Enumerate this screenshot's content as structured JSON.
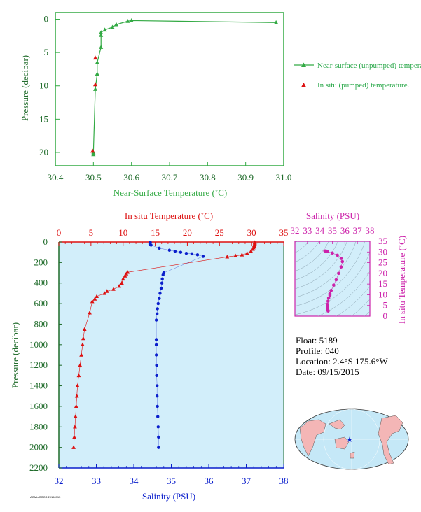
{
  "colors": {
    "green": "#33aa44",
    "axis_green": "#1f6b2a",
    "red": "#dd1111",
    "blue": "#0a1ecc",
    "magenta": "#cc22aa",
    "panel_fill": "#d2eefa",
    "land": "#f4b6b6",
    "ocean": "#c5e8f7"
  },
  "info": {
    "float": "Float:  5189",
    "profile": "Profile:  040",
    "location": "Location:  2.4°S  175.6°W",
    "date": "Date:  09/15/2015"
  },
  "footer_id": "AOML/GOOS 20150915",
  "chart_data": [
    {
      "type": "line",
      "panel": "near-surface",
      "xlabel": "Near-Surface Temperature (˚C)",
      "ylabel": "Pressure (decibar)",
      "xlim": [
        30.4,
        31.0
      ],
      "ylim": [
        22,
        -1
      ],
      "x_ticks": [
        "30.4",
        "30.5",
        "30.6",
        "30.7",
        "30.8",
        "30.9",
        "31.0"
      ],
      "y_ticks": [
        "0",
        "5",
        "10",
        "15",
        "20"
      ],
      "grid": false,
      "legend_position": "right",
      "series": [
        {
          "name": "Near-surface (unpumped) temperature.",
          "marker": "triangle-line",
          "points": [
            [
              30.98,
              0.5
            ],
            [
              30.6,
              0.2
            ],
            [
              30.59,
              0.3
            ],
            [
              30.56,
              0.8
            ],
            [
              30.55,
              1.2
            ],
            [
              30.53,
              1.6
            ],
            [
              30.52,
              2.0
            ],
            [
              30.52,
              2.4
            ],
            [
              30.52,
              4.2
            ],
            [
              30.51,
              6.5
            ],
            [
              30.51,
              8.2
            ],
            [
              30.505,
              10.5
            ],
            [
              30.5,
              20.0
            ],
            [
              30.5,
              20.3
            ]
          ]
        },
        {
          "name": "In situ (pumped) temperature.",
          "marker": "triangle",
          "points": [
            [
              30.505,
              5.8
            ],
            [
              30.505,
              9.8
            ],
            [
              30.498,
              19.8
            ]
          ]
        }
      ]
    },
    {
      "type": "line",
      "panel": "profile",
      "ylabel": "Pressure (decibar)",
      "ylim": [
        2200,
        0
      ],
      "y_ticks": [
        "0",
        "200",
        "400",
        "600",
        "800",
        "1000",
        "1200",
        "1400",
        "1600",
        "1800",
        "2000",
        "2200"
      ],
      "x_top": {
        "label": "In situ Temperature (˚C)",
        "lim": [
          0,
          35
        ],
        "ticks": [
          "0",
          "5",
          "10",
          "15",
          "20",
          "25",
          "30",
          "35"
        ]
      },
      "x_bottom": {
        "label": "Salinity (PSU)",
        "lim": [
          32,
          38
        ],
        "ticks": [
          "32",
          "33",
          "34",
          "35",
          "36",
          "37",
          "38"
        ]
      },
      "series": [
        {
          "variable": "temperature",
          "points": [
            [
              30.5,
              5
            ],
            [
              30.5,
              10
            ],
            [
              30.5,
              20
            ],
            [
              30.4,
              30
            ],
            [
              30.4,
              40
            ],
            [
              30.3,
              55
            ],
            [
              30.2,
              70
            ],
            [
              29.9,
              90
            ],
            [
              29.3,
              110
            ],
            [
              28.5,
              125
            ],
            [
              27.5,
              135
            ],
            [
              26.2,
              145
            ],
            [
              10.7,
              295
            ],
            [
              10.5,
              310
            ],
            [
              10.3,
              330
            ],
            [
              10.0,
              360
            ],
            [
              9.8,
              400
            ],
            [
              9.4,
              430
            ],
            [
              8.5,
              460
            ],
            [
              7.5,
              480
            ],
            [
              7.1,
              500
            ],
            [
              5.9,
              530
            ],
            [
              5.6,
              555
            ],
            [
              5.2,
              580
            ],
            [
              4.8,
              690
            ],
            [
              4.0,
              850
            ],
            [
              3.8,
              940
            ],
            [
              3.7,
              1000
            ],
            [
              3.5,
              1100
            ],
            [
              3.3,
              1200
            ],
            [
              3.1,
              1300
            ],
            [
              2.9,
              1400
            ],
            [
              2.8,
              1500
            ],
            [
              2.7,
              1600
            ],
            [
              2.6,
              1700
            ],
            [
              2.5,
              1800
            ],
            [
              2.4,
              1900
            ],
            [
              2.3,
              2000
            ]
          ]
        },
        {
          "variable": "salinity",
          "points": [
            [
              34.44,
              5
            ],
            [
              34.43,
              20
            ],
            [
              34.46,
              30
            ],
            [
              34.68,
              60
            ],
            [
              34.95,
              80
            ],
            [
              35.1,
              90
            ],
            [
              35.25,
              100
            ],
            [
              35.4,
              110
            ],
            [
              35.55,
              115
            ],
            [
              35.7,
              125
            ],
            [
              35.85,
              140
            ],
            [
              34.8,
              300
            ],
            [
              34.78,
              320
            ],
            [
              34.76,
              360
            ],
            [
              34.75,
              400
            ],
            [
              34.73,
              450
            ],
            [
              34.7,
              500
            ],
            [
              34.68,
              550
            ],
            [
              34.65,
              600
            ],
            [
              34.63,
              650
            ],
            [
              34.62,
              700
            ],
            [
              34.6,
              760
            ],
            [
              34.6,
              950
            ],
            [
              34.6,
              1000
            ],
            [
              34.6,
              1100
            ],
            [
              34.61,
              1200
            ],
            [
              34.61,
              1300
            ],
            [
              34.62,
              1400
            ],
            [
              34.62,
              1500
            ],
            [
              34.63,
              1600
            ],
            [
              34.64,
              1700
            ],
            [
              34.65,
              1800
            ],
            [
              34.66,
              1900
            ],
            [
              34.66,
              2000
            ]
          ]
        }
      ]
    },
    {
      "type": "scatter",
      "panel": "t-s",
      "xlabel": "Salinity (PSU)",
      "ylabel": "In situ Temperature (˚C)",
      "xlim": [
        32,
        38
      ],
      "ylim": [
        0,
        35
      ],
      "x_ticks": [
        "32",
        "33",
        "34",
        "35",
        "36",
        "37",
        "38"
      ],
      "y_ticks": [
        "0",
        "5",
        "10",
        "15",
        "20",
        "25",
        "30",
        "35"
      ],
      "points": [
        [
          34.4,
          30.5
        ],
        [
          34.5,
          30.4
        ],
        [
          34.6,
          30.2
        ],
        [
          35.0,
          29.5
        ],
        [
          35.4,
          28.5
        ],
        [
          35.7,
          27.0
        ],
        [
          35.8,
          25.5
        ],
        [
          35.7,
          23.0
        ],
        [
          35.5,
          20.0
        ],
        [
          35.3,
          17.0
        ],
        [
          35.1,
          14.5
        ],
        [
          34.9,
          12.0
        ],
        [
          34.8,
          10.5
        ],
        [
          34.8,
          9.8
        ],
        [
          34.7,
          8.5
        ],
        [
          34.65,
          7.0
        ],
        [
          34.6,
          5.5
        ],
        [
          34.6,
          4.5
        ],
        [
          34.6,
          3.8
        ],
        [
          34.62,
          3.2
        ],
        [
          34.64,
          2.8
        ],
        [
          34.66,
          2.4
        ]
      ]
    }
  ]
}
